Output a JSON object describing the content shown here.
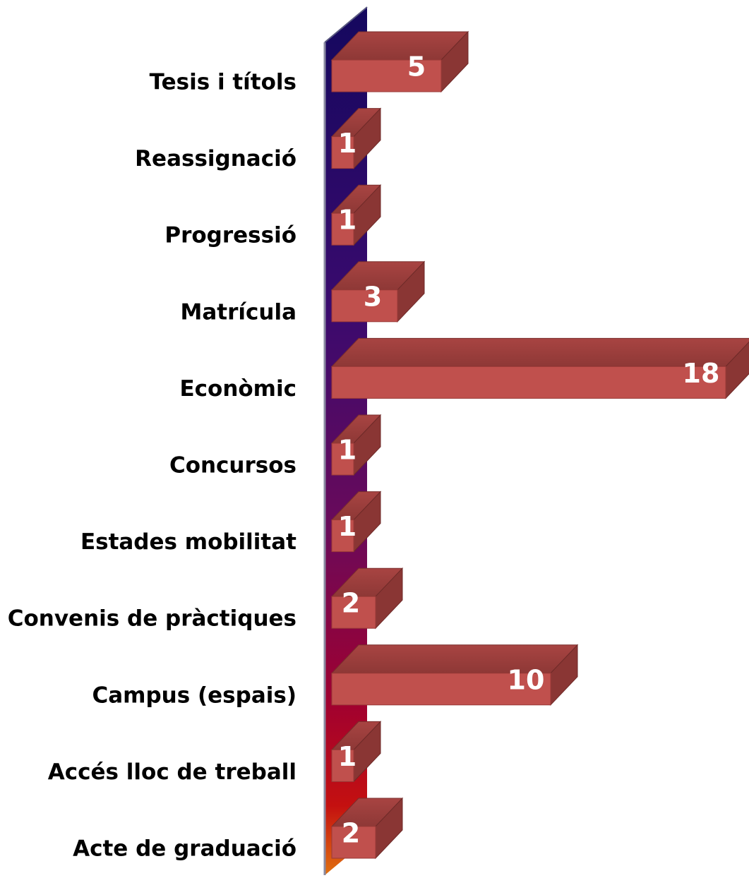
{
  "chart_data": {
    "type": "bar",
    "orientation": "horizontal",
    "categories": [
      "Tesis i títols",
      "Reassignació",
      "Progressió",
      "Matrícula",
      "Econòmic",
      "Concursos",
      "Estades mobilitat",
      "Convenis de pràctiques",
      "Campus (espais)",
      "Accés lloc de treball",
      "Acte de graduació"
    ],
    "values": [
      5,
      1,
      1,
      3,
      18,
      1,
      1,
      2,
      10,
      1,
      2
    ],
    "color": "#c0504d"
  }
}
